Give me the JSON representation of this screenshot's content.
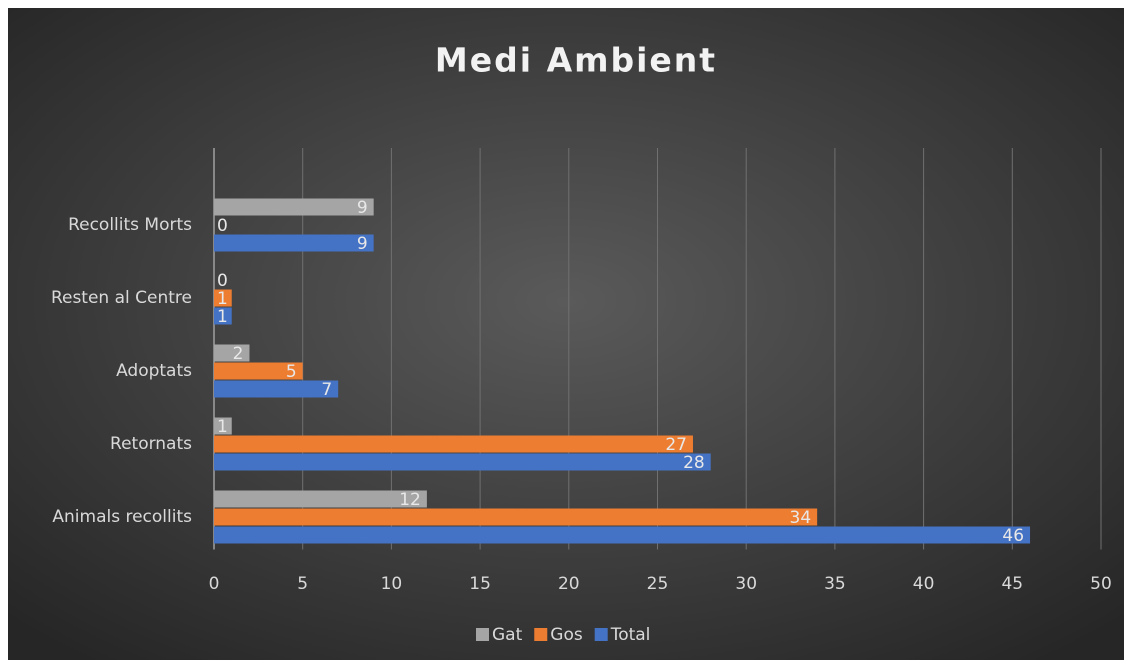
{
  "chart_data": {
    "type": "hbar",
    "title": "Medi Ambient",
    "categories": [
      "Animals recollits",
      "Retornats",
      "Adoptats",
      "Resten al Centre",
      "Recollits Morts"
    ],
    "series": [
      {
        "name": "Gat",
        "color": "#a5a5a5",
        "values": [
          12,
          1,
          2,
          0,
          9
        ]
      },
      {
        "name": "Gos",
        "color": "#ed7d31",
        "values": [
          34,
          27,
          5,
          1,
          0
        ]
      },
      {
        "name": "Total",
        "color": "#4472c4",
        "values": [
          46,
          28,
          7,
          1,
          9
        ]
      }
    ],
    "xlim": [
      0,
      50
    ],
    "xticks": [
      0,
      5,
      10,
      15,
      20,
      25,
      30,
      35,
      40,
      45,
      50
    ],
    "grid": true,
    "legend": "bottom"
  }
}
